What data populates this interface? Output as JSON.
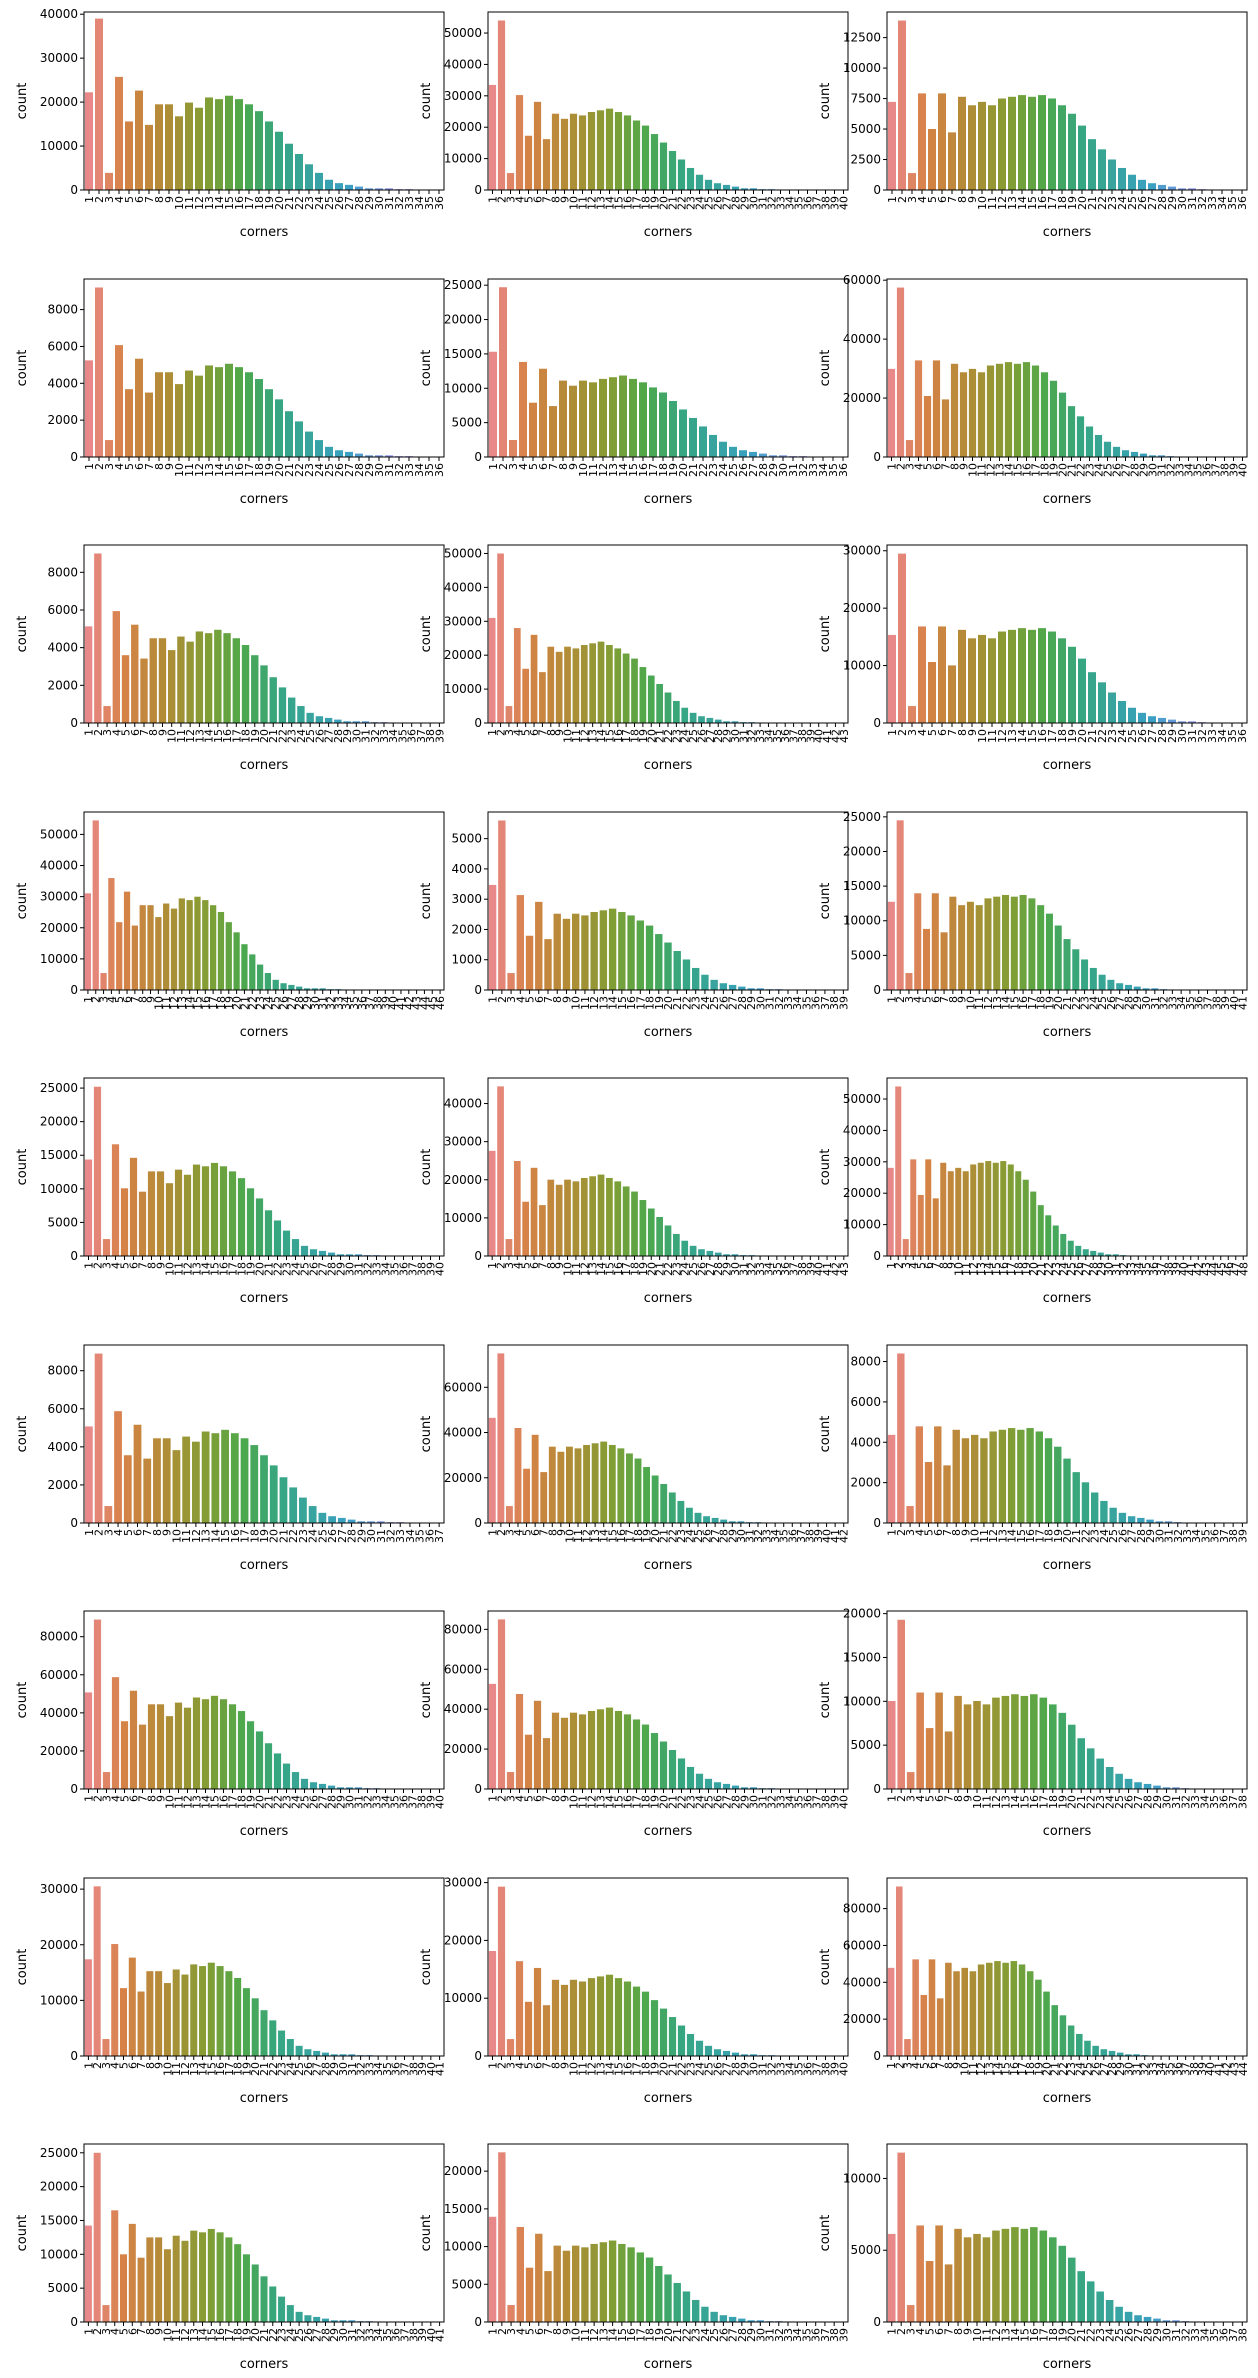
{
  "figure": {
    "xlabel": "corners",
    "ylabel": "count"
  },
  "chart_data": [
    {
      "type": "bar",
      "peak": 39000,
      "n": 36,
      "yticks": [
        0,
        10000,
        20000,
        30000,
        40000
      ],
      "ytick_labels": [
        "0",
        "10000",
        "20000",
        "30000",
        "40000"
      ],
      "ylim": [
        0,
        40500
      ]
    },
    {
      "type": "bar",
      "peak": 54000,
      "n": 40,
      "yticks": [
        0,
        10000,
        20000,
        30000,
        40000,
        50000
      ],
      "ytick_labels": [
        "0",
        "10000",
        "20000",
        "30000",
        "40000",
        "50000"
      ],
      "ylim": [
        0,
        56700
      ]
    },
    {
      "type": "bar",
      "peak": 13900,
      "n": 36,
      "yticks": [
        0,
        2500,
        5000,
        7500,
        10000,
        12500
      ],
      "ytick_labels": [
        "0",
        "2500",
        "5000",
        "7500",
        "10000",
        "12500"
      ],
      "ylim": [
        0,
        14600
      ]
    },
    {
      "type": "bar",
      "peak": 9200,
      "n": 36,
      "yticks": [
        0,
        2000,
        4000,
        6000,
        8000
      ],
      "ytick_labels": [
        "0",
        "2000",
        "4000",
        "6000",
        "8000"
      ],
      "ylim": [
        0,
        9660
      ]
    },
    {
      "type": "bar",
      "peak": 24700,
      "n": 36,
      "yticks": [
        0,
        5000,
        10000,
        15000,
        20000,
        25000
      ],
      "ytick_labels": [
        "0",
        "5000",
        "10000",
        "15000",
        "20000",
        "25000"
      ],
      "ylim": [
        0,
        25900
      ]
    },
    {
      "type": "bar",
      "peak": 57500,
      "n": 40,
      "yticks": [
        0,
        20000,
        40000,
        60000
      ],
      "ytick_labels": [
        "0",
        "20000",
        "40000",
        "60000"
      ],
      "ylim": [
        0,
        60400
      ]
    },
    {
      "type": "bar",
      "peak": 9000,
      "n": 39,
      "yticks": [
        0,
        2000,
        4000,
        6000,
        8000
      ],
      "ytick_labels": [
        "0",
        "2000",
        "4000",
        "6000",
        "8000"
      ],
      "ylim": [
        0,
        9450
      ]
    },
    {
      "type": "bar",
      "peak": 50000,
      "n": 43,
      "yticks": [
        0,
        10000,
        20000,
        30000,
        40000,
        50000
      ],
      "ytick_labels": [
        "0",
        "10000",
        "20000",
        "30000",
        "40000",
        "50000"
      ],
      "ylim": [
        0,
        52500
      ]
    },
    {
      "type": "bar",
      "peak": 29500,
      "n": 36,
      "yticks": [
        0,
        10000,
        20000,
        30000
      ],
      "ytick_labels": [
        "0",
        "10000",
        "20000",
        "30000"
      ],
      "ylim": [
        0,
        31000
      ]
    },
    {
      "type": "bar",
      "peak": 54500,
      "n": 46,
      "yticks": [
        0,
        10000,
        20000,
        30000,
        40000,
        50000
      ],
      "ytick_labels": [
        "0",
        "10000",
        "20000",
        "30000",
        "40000",
        "50000"
      ],
      "ylim": [
        0,
        57200
      ]
    },
    {
      "type": "bar",
      "peak": 5600,
      "n": 39,
      "yticks": [
        0,
        1000,
        2000,
        3000,
        4000,
        5000
      ],
      "ytick_labels": [
        "0",
        "1000",
        "2000",
        "3000",
        "4000",
        "5000"
      ],
      "ylim": [
        0,
        5880
      ]
    },
    {
      "type": "bar",
      "peak": 24500,
      "n": 41,
      "yticks": [
        0,
        5000,
        10000,
        15000,
        20000,
        25000
      ],
      "ytick_labels": [
        "0",
        "5000",
        "10000",
        "15000",
        "20000",
        "25000"
      ],
      "ylim": [
        0,
        25700
      ]
    },
    {
      "type": "bar",
      "peak": 25200,
      "n": 40,
      "yticks": [
        0,
        5000,
        10000,
        15000,
        20000,
        25000
      ],
      "ytick_labels": [
        "0",
        "5000",
        "10000",
        "15000",
        "20000",
        "25000"
      ],
      "ylim": [
        0,
        26500
      ]
    },
    {
      "type": "bar",
      "peak": 44500,
      "n": 43,
      "yticks": [
        0,
        10000,
        20000,
        30000,
        40000
      ],
      "ytick_labels": [
        "0",
        "10000",
        "20000",
        "30000",
        "40000"
      ],
      "ylim": [
        0,
        46700
      ]
    },
    {
      "type": "bar",
      "peak": 54000,
      "n": 48,
      "yticks": [
        0,
        10000,
        20000,
        30000,
        40000,
        50000
      ],
      "ytick_labels": [
        "0",
        "10000",
        "20000",
        "30000",
        "40000",
        "50000"
      ],
      "ylim": [
        0,
        56700
      ]
    },
    {
      "type": "bar",
      "peak": 8900,
      "n": 37,
      "yticks": [
        0,
        2000,
        4000,
        6000,
        8000
      ],
      "ytick_labels": [
        "0",
        "2000",
        "4000",
        "6000",
        "8000"
      ],
      "ylim": [
        0,
        9350
      ]
    },
    {
      "type": "bar",
      "peak": 75000,
      "n": 42,
      "yticks": [
        0,
        20000,
        40000,
        60000
      ],
      "ytick_labels": [
        "0",
        "20000",
        "40000",
        "60000"
      ],
      "ylim": [
        0,
        78700
      ]
    },
    {
      "type": "bar",
      "peak": 8400,
      "n": 39,
      "yticks": [
        0,
        2000,
        4000,
        6000,
        8000
      ],
      "ytick_labels": [
        "0",
        "2000",
        "4000",
        "6000",
        "8000"
      ],
      "ylim": [
        0,
        8820
      ]
    },
    {
      "type": "bar",
      "peak": 89000,
      "n": 40,
      "yticks": [
        0,
        20000,
        40000,
        60000,
        80000
      ],
      "ytick_labels": [
        "0",
        "20000",
        "40000",
        "60000",
        "80000"
      ],
      "ylim": [
        0,
        93500
      ]
    },
    {
      "type": "bar",
      "peak": 85000,
      "n": 40,
      "yticks": [
        0,
        20000,
        40000,
        60000,
        80000
      ],
      "ytick_labels": [
        "0",
        "20000",
        "40000",
        "60000",
        "80000"
      ],
      "ylim": [
        0,
        89200
      ]
    },
    {
      "type": "bar",
      "peak": 19300,
      "n": 38,
      "yticks": [
        0,
        5000,
        10000,
        15000,
        20000
      ],
      "ytick_labels": [
        "0",
        "5000",
        "10000",
        "15000",
        "20000"
      ],
      "ylim": [
        0,
        20300
      ]
    },
    {
      "type": "bar",
      "peak": 30500,
      "n": 41,
      "yticks": [
        0,
        10000,
        20000,
        30000
      ],
      "ytick_labels": [
        "0",
        "10000",
        "20000",
        "30000"
      ],
      "ylim": [
        0,
        32000
      ]
    },
    {
      "type": "bar",
      "peak": 29300,
      "n": 40,
      "yticks": [
        0,
        10000,
        20000,
        30000
      ],
      "ytick_labels": [
        "0",
        "10000",
        "20000",
        "30000"
      ],
      "ylim": [
        0,
        30800
      ]
    },
    {
      "type": "bar",
      "peak": 92000,
      "n": 44,
      "yticks": [
        0,
        20000,
        40000,
        60000,
        80000
      ],
      "ytick_labels": [
        "0",
        "20000",
        "40000",
        "60000",
        "80000"
      ],
      "ylim": [
        0,
        96600
      ]
    },
    {
      "type": "bar",
      "peak": 25000,
      "n": 41,
      "yticks": [
        0,
        5000,
        10000,
        15000,
        20000,
        25000
      ],
      "ytick_labels": [
        "0",
        "5000",
        "10000",
        "15000",
        "20000",
        "25000"
      ],
      "ylim": [
        0,
        26300
      ]
    },
    {
      "type": "bar",
      "peak": 22500,
      "n": 39,
      "yticks": [
        0,
        5000,
        10000,
        15000,
        20000
      ],
      "ytick_labels": [
        "0",
        "5000",
        "10000",
        "15000",
        "20000"
      ],
      "ylim": [
        0,
        23600
      ]
    },
    {
      "type": "bar",
      "peak": 11800,
      "n": 38,
      "yticks": [
        0,
        5000,
        10000
      ],
      "ytick_labels": [
        "0",
        "5000",
        "10000"
      ],
      "ylim": [
        0,
        12400
      ]
    }
  ],
  "series_profiles": {
    "a": [
      0.57,
      1.0,
      0.1,
      0.66,
      0.4,
      0.58,
      0.38,
      0.5,
      0.5,
      0.43,
      0.51,
      0.48,
      0.54,
      0.53,
      0.55,
      0.53,
      0.5,
      0.46,
      0.4,
      0.34,
      0.27,
      0.21,
      0.15,
      0.1,
      0.06,
      0.04,
      0.03,
      0.02,
      0.01,
      0.01,
      0.01,
      0.005,
      0.005,
      0.003,
      0.002,
      0.001
    ],
    "b": [
      0.62,
      1.0,
      0.1,
      0.56,
      0.32,
      0.52,
      0.3,
      0.45,
      0.42,
      0.45,
      0.44,
      0.46,
      0.47,
      0.48,
      0.46,
      0.44,
      0.41,
      0.38,
      0.33,
      0.28,
      0.23,
      0.18,
      0.13,
      0.09,
      0.06,
      0.04,
      0.03,
      0.02,
      0.01,
      0.01,
      0.005,
      0.005,
      0.003,
      0.002,
      0.001,
      0.001
    ],
    "c": [
      0.52,
      1.0,
      0.1,
      0.57,
      0.36,
      0.57,
      0.34,
      0.55,
      0.5,
      0.52,
      0.5,
      0.54,
      0.55,
      0.56,
      0.55,
      0.56,
      0.54,
      0.5,
      0.45,
      0.38,
      0.3,
      0.24,
      0.18,
      0.13,
      0.09,
      0.06,
      0.04,
      0.03,
      0.02,
      0.01,
      0.01,
      0.005,
      0.003,
      0.002,
      0.001,
      0.001
    ]
  }
}
